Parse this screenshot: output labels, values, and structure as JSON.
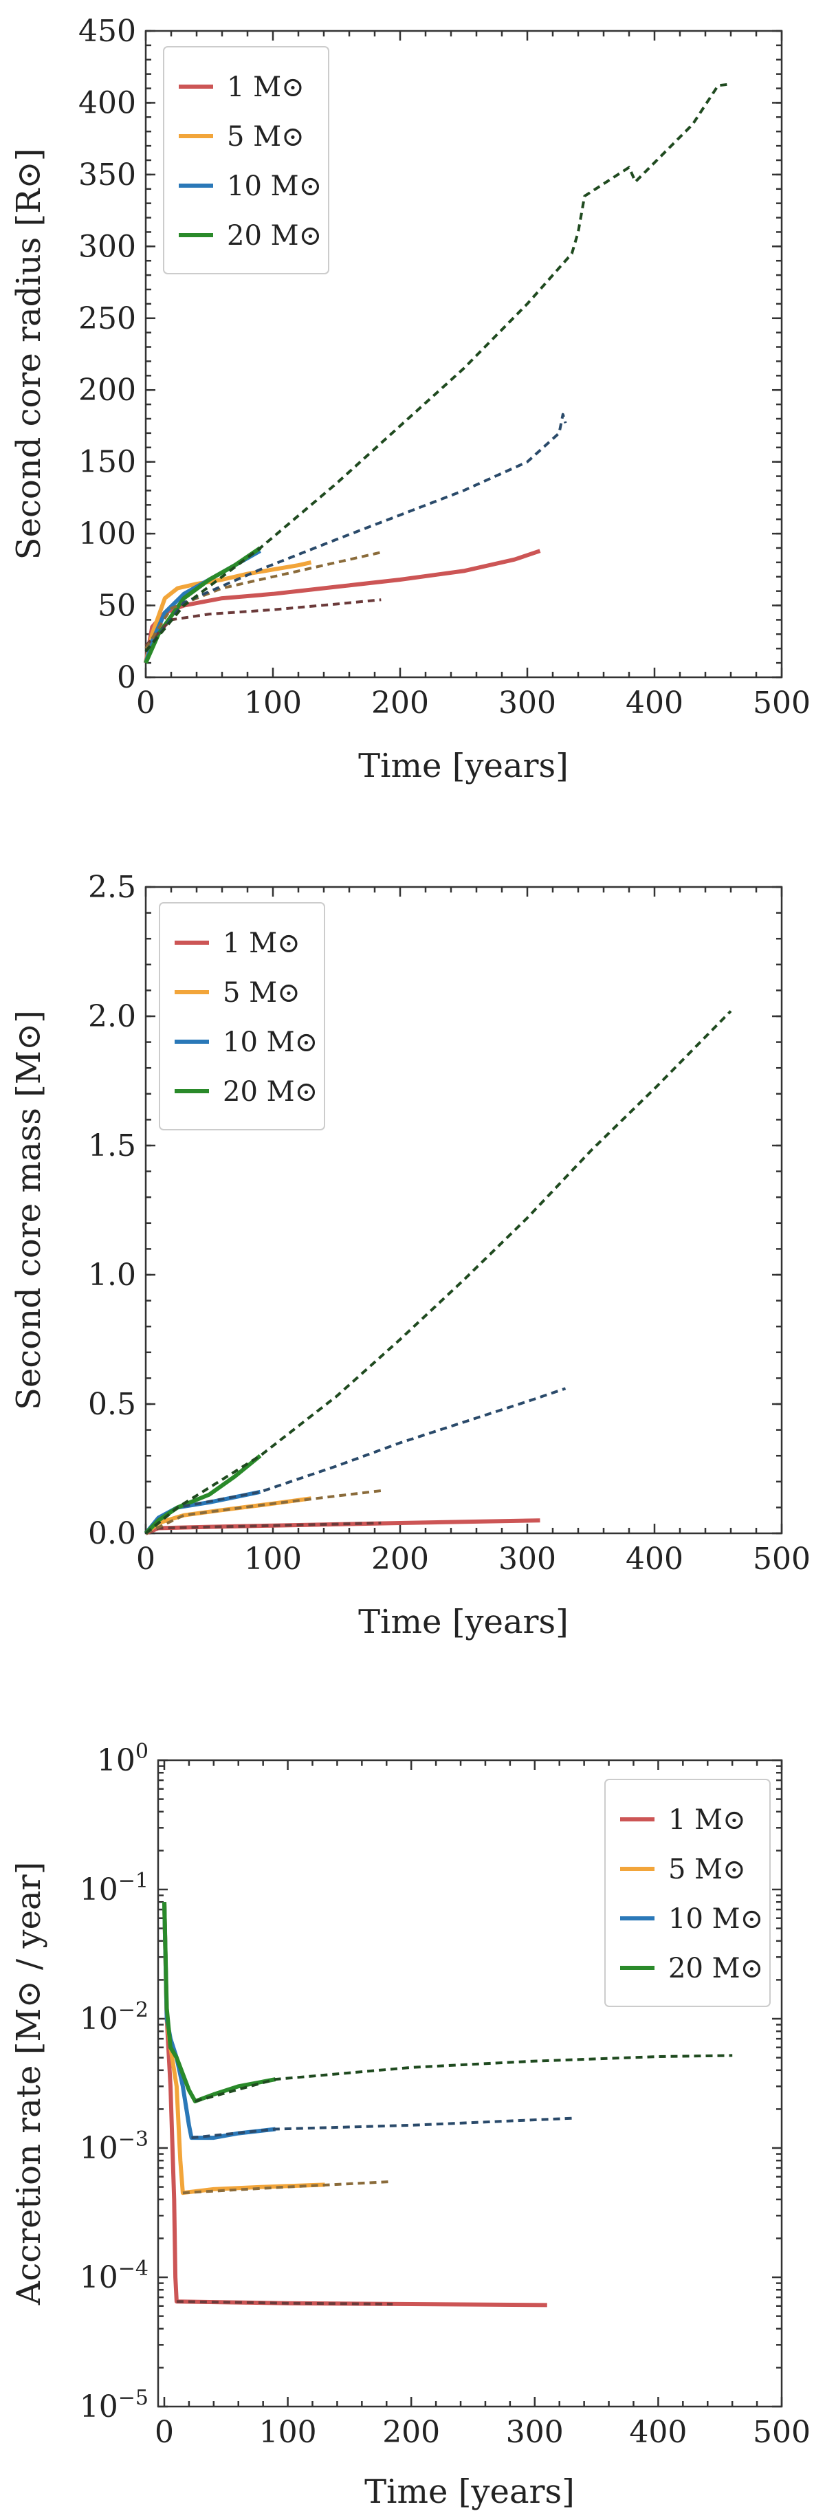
{
  "figure": {
    "title": ""
  },
  "chart_data": [
    {
      "type": "line",
      "id": "radius",
      "title": "",
      "xlabel": "Time [years]",
      "ylabel": "Second core radius [R⊙]",
      "yscale": "linear",
      "xlim": [
        0,
        500
      ],
      "ylim": [
        0,
        450
      ],
      "xticks": [
        0,
        100,
        200,
        300,
        400,
        500
      ],
      "xtick_labels": [
        "0",
        "100",
        "200",
        "300",
        "400",
        "500"
      ],
      "yticks": [
        0,
        50,
        100,
        150,
        200,
        250,
        300,
        350,
        400,
        450
      ],
      "ytick_labels": [
        "0",
        "50",
        "100",
        "150",
        "200",
        "250",
        "300",
        "350",
        "400",
        "450"
      ],
      "legend_position": "top-left",
      "series": [
        {
          "name": "1 M⊙",
          "color": "#cc5555",
          "x": [
            0,
            5,
            15,
            30,
            60,
            100,
            150,
            200,
            250,
            290,
            310
          ],
          "y": [
            10,
            35,
            45,
            50,
            55,
            58,
            63,
            68,
            74,
            82,
            88
          ],
          "fit": {
            "color": "#6b3a3a",
            "x": [
              0,
              20,
              50,
              100,
              150,
              185
            ],
            "y": [
              22,
              40,
              44,
              47,
              51,
              54
            ]
          }
        },
        {
          "name": "5 M⊙",
          "color": "#f2a53a",
          "x": [
            0,
            5,
            15,
            25,
            40,
            60,
            80,
            100,
            120,
            130
          ],
          "y": [
            10,
            30,
            55,
            62,
            65,
            68,
            72,
            75,
            78,
            80
          ],
          "fit": {
            "color": "#8a6b3a",
            "x": [
              0,
              20,
              60,
              100,
              140,
              185
            ],
            "y": [
              20,
              48,
              62,
              70,
              78,
              87
            ]
          }
        },
        {
          "name": "10 M⊙",
          "color": "#2a78b8",
          "x": [
            0,
            5,
            15,
            30,
            50,
            70,
            90
          ],
          "y": [
            10,
            25,
            45,
            58,
            68,
            78,
            88
          ],
          "fit": {
            "color": "#2a4a6a",
            "x": [
              0,
              30,
              90,
              150,
              200,
              250,
              300,
              325,
              328,
              330
            ],
            "y": [
              18,
              52,
              75,
              96,
              113,
              130,
              150,
              170,
              183,
              177
            ]
          }
        },
        {
          "name": "20 M⊙",
          "color": "#2a8a2a",
          "x": [
            0,
            10,
            30,
            50,
            70,
            90
          ],
          "y": [
            10,
            30,
            55,
            68,
            78,
            90
          ],
          "fit": {
            "color": "#1f4a1f",
            "x": [
              0,
              30,
              90,
              150,
              200,
              250,
              300,
              335,
              340,
              345,
              380,
              385,
              430,
              450,
              460
            ],
            "y": [
              18,
              50,
              90,
              135,
              175,
              215,
              260,
              295,
              310,
              335,
              355,
              345,
              385,
              412,
              413
            ]
          }
        }
      ]
    },
    {
      "type": "line",
      "id": "mass",
      "title": "",
      "xlabel": "Time [years]",
      "ylabel": "Second core mass [M⊙]",
      "yscale": "linear",
      "xlim": [
        0,
        500
      ],
      "ylim": [
        0,
        2.5
      ],
      "xticks": [
        0,
        100,
        200,
        300,
        400,
        500
      ],
      "xtick_labels": [
        "0",
        "100",
        "200",
        "300",
        "400",
        "500"
      ],
      "yticks": [
        0,
        0.5,
        1.0,
        1.5,
        2.0,
        2.5
      ],
      "ytick_labels": [
        "0.0",
        "0.5",
        "1.0",
        "1.5",
        "2.0",
        "2.5"
      ],
      "legend_position": "top-left",
      "series": [
        {
          "name": "1 M⊙",
          "color": "#cc5555",
          "x": [
            0,
            10,
            50,
            100,
            200,
            310
          ],
          "y": [
            0,
            0.02,
            0.025,
            0.03,
            0.04,
            0.05
          ],
          "fit": {
            "color": "#6b3a3a",
            "x": [
              0,
              10,
              100,
              185
            ],
            "y": [
              0,
              0.02,
              0.03,
              0.04
            ]
          }
        },
        {
          "name": "5 M⊙",
          "color": "#f2a53a",
          "x": [
            0,
            10,
            30,
            60,
            100,
            130
          ],
          "y": [
            0,
            0.04,
            0.07,
            0.09,
            0.115,
            0.135
          ],
          "fit": {
            "color": "#8a6b3a",
            "x": [
              0,
              30,
              100,
              185
            ],
            "y": [
              0,
              0.07,
              0.115,
              0.165
            ]
          }
        },
        {
          "name": "10 M⊙",
          "color": "#2a78b8",
          "x": [
            0,
            10,
            25,
            50,
            70,
            90
          ],
          "y": [
            0,
            0.06,
            0.1,
            0.12,
            0.14,
            0.16
          ],
          "fit": {
            "color": "#2a4a6a",
            "x": [
              0,
              25,
              90,
              150,
              200,
              250,
              300,
              330
            ],
            "y": [
              0,
              0.1,
              0.16,
              0.26,
              0.35,
              0.43,
              0.51,
              0.56
            ]
          }
        },
        {
          "name": "20 M⊙",
          "color": "#2a8a2a",
          "x": [
            0,
            10,
            25,
            50,
            70,
            90
          ],
          "y": [
            0,
            0.05,
            0.1,
            0.15,
            0.22,
            0.3
          ],
          "fit": {
            "color": "#1f4a1f",
            "x": [
              0,
              25,
              90,
              150,
              200,
              250,
              300,
              350,
              400,
              460
            ],
            "y": [
              0,
              0.1,
              0.3,
              0.53,
              0.75,
              0.98,
              1.22,
              1.48,
              1.72,
              2.02
            ]
          }
        }
      ]
    },
    {
      "type": "line",
      "id": "accretion",
      "title": "",
      "xlabel": "Time [years]",
      "ylabel": "Accretion rate [M⊙ / year]",
      "yscale": "log",
      "xlim": [
        -5,
        500
      ],
      "ylim": [
        1e-05,
        1
      ],
      "xticks": [
        0,
        100,
        200,
        300,
        400,
        500
      ],
      "xtick_labels": [
        "0",
        "100",
        "200",
        "300",
        "400",
        "500"
      ],
      "yticks": [
        1e-05,
        0.0001,
        0.001,
        0.01,
        0.1,
        1
      ],
      "ytick_labels": [
        {
          "base": "10",
          "exp": "−5"
        },
        {
          "base": "10",
          "exp": "−4"
        },
        {
          "base": "10",
          "exp": "−3"
        },
        {
          "base": "10",
          "exp": "−2"
        },
        {
          "base": "10",
          "exp": "−1"
        },
        {
          "base": "10",
          "exp": "0"
        }
      ],
      "legend_position": "top-right",
      "series": [
        {
          "name": "1 M⊙",
          "color": "#cc5555",
          "x": [
            0,
            2,
            5,
            8,
            9,
            10,
            50,
            100,
            200,
            310
          ],
          "y": [
            0.08,
            0.01,
            0.003,
            0.0004,
            0.0001,
            6.5e-05,
            6.4e-05,
            6.3e-05,
            6.2e-05,
            6.1e-05
          ],
          "fit": {
            "color": "#6b3a3a",
            "x": [
              10,
              100,
              185
            ],
            "y": [
              6.5e-05,
              6.3e-05,
              6.2e-05
            ]
          }
        },
        {
          "name": "5 M⊙",
          "color": "#f2a53a",
          "x": [
            0,
            2,
            5,
            10,
            13,
            15,
            40,
            80,
            130
          ],
          "y": [
            0.08,
            0.01,
            0.006,
            0.003,
            0.0008,
            0.00045,
            0.00048,
            0.0005,
            0.00052
          ],
          "fit": {
            "color": "#8a6b3a",
            "x": [
              15,
              100,
              185
            ],
            "y": [
              0.00045,
              0.0005,
              0.00055
            ]
          }
        },
        {
          "name": "10 M⊙",
          "color": "#2a78b8",
          "x": [
            0,
            2,
            5,
            10,
            15,
            20,
            22,
            40,
            60,
            90
          ],
          "y": [
            0.08,
            0.01,
            0.007,
            0.005,
            0.003,
            0.0015,
            0.0012,
            0.0012,
            0.0013,
            0.0014
          ],
          "fit": {
            "color": "#2a4a6a",
            "x": [
              22,
              90,
              200,
              330
            ],
            "y": [
              0.0012,
              0.0014,
              0.0015,
              0.0017
            ]
          }
        },
        {
          "name": "20 M⊙",
          "color": "#2a8a2a",
          "x": [
            0,
            2,
            5,
            10,
            20,
            25,
            40,
            60,
            90
          ],
          "y": [
            0.08,
            0.012,
            0.006,
            0.005,
            0.0028,
            0.0023,
            0.0026,
            0.003,
            0.0034
          ],
          "fit": {
            "color": "#1f4a1f",
            "x": [
              25,
              90,
              200,
              300,
              400,
              460
            ],
            "y": [
              0.0023,
              0.0034,
              0.0042,
              0.0047,
              0.0051,
              0.0052
            ]
          }
        }
      ]
    }
  ]
}
